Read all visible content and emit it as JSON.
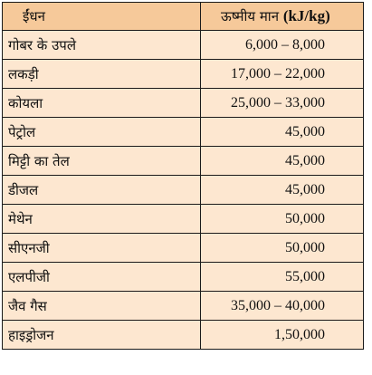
{
  "header": {
    "fuel": "ईंधन",
    "calorific_value": "ऊष्मीय मान",
    "unit": "(kJ/kg)"
  },
  "rows": [
    {
      "fuel": "गोबर के उपले",
      "value": "6,000  –  8,000"
    },
    {
      "fuel": "लकड़ी",
      "value": "17,000  –  22,000"
    },
    {
      "fuel": "कोयला",
      "value": "25,000  –  33,000"
    },
    {
      "fuel": "पेट्रोल",
      "value": "45,000"
    },
    {
      "fuel": "मिट्टी का तेल",
      "value": "45,000"
    },
    {
      "fuel": "डीजल",
      "value": "45,000"
    },
    {
      "fuel": "मेथेन",
      "value": "50,000"
    },
    {
      "fuel": "सीएनजी",
      "value": "50,000"
    },
    {
      "fuel": "एलपीजी",
      "value": "55,000"
    },
    {
      "fuel": "जैव गैस",
      "value": "35,000  –  40,000"
    },
    {
      "fuel": "हाइड्रोजन",
      "value": "1,50,000"
    }
  ]
}
